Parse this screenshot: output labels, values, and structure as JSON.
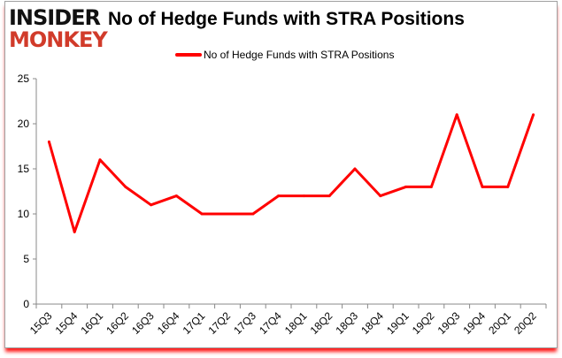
{
  "logo": {
    "line1": "INSIDER",
    "line2": "MONKEY"
  },
  "chart_data": {
    "type": "line",
    "title": "No of Hedge Funds with STRA Positions",
    "categories": [
      "15Q3",
      "15Q4",
      "16Q1",
      "16Q2",
      "16Q3",
      "16Q4",
      "17Q1",
      "17Q2",
      "17Q3",
      "17Q4",
      "18Q1",
      "18Q2",
      "18Q3",
      "18Q4",
      "19Q1",
      "19Q2",
      "19Q3",
      "19Q4",
      "20Q1",
      "20Q2"
    ],
    "series": [
      {
        "name": "No of Hedge Funds with STRA Positions",
        "values": [
          18,
          8,
          16,
          13,
          11,
          12,
          10,
          10,
          10,
          12,
          12,
          12,
          15,
          12,
          13,
          13,
          21,
          13,
          13,
          21
        ],
        "color": "#ff0000"
      }
    ],
    "ylim": [
      0,
      25
    ],
    "yticks": [
      0,
      5,
      10,
      15,
      20,
      25
    ],
    "grid": false,
    "legend": "top-center",
    "xlabel": "",
    "ylabel": ""
  }
}
